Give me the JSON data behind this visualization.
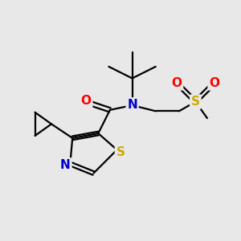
{
  "bg_color": "#e8e8e8",
  "atom_colors": {
    "C": "#000000",
    "N": "#0000cc",
    "O": "#ff0000",
    "S_thiazole": "#ccaa00",
    "S_sulfonyl": "#ccaa00"
  },
  "bond_color": "#000000",
  "bond_width": 1.6,
  "font_size_atom": 10
}
